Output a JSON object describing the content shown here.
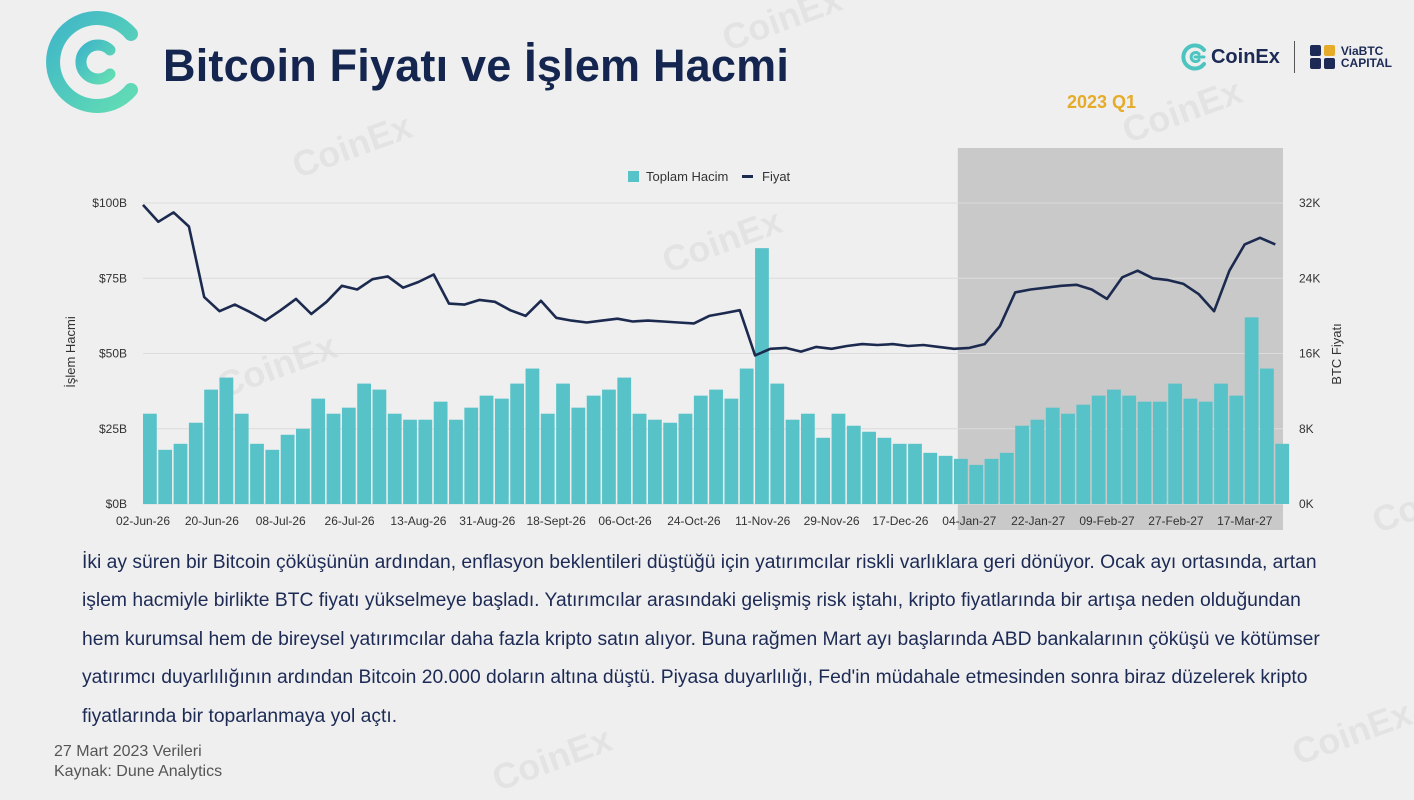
{
  "header": {
    "title": "Bitcoin Fiyatı ve İşlem Hacmi",
    "coinex_brand": "CoinEx",
    "viabtc_brand": "ViaBTC\nCAPITAL",
    "period": "2023 Q1"
  },
  "icons": {
    "main_logo": "coinex-logo-icon",
    "coinex": "coinex-logo-icon",
    "viabtc": "viabtc-logo-icon"
  },
  "colors": {
    "bar": "#58c2c9",
    "line": "#1b2a4e",
    "highlight": "#c9c9c9",
    "period": "#e6ab28",
    "title": "#14254f"
  },
  "chart_data": {
    "type": "bar+line",
    "legend": {
      "volume": "Toplam Hacim",
      "price": "Fiyat"
    },
    "legend_position": "top-center",
    "ylabel_left": "İşlem Hacmi",
    "ylabel_right": "BTC Fiyatı",
    "y_left_ticks": [
      "$0B",
      "$25B",
      "$50B",
      "$75B",
      "$100B"
    ],
    "y_right_ticks": [
      "0K",
      "8K",
      "16K",
      "24K",
      "32K"
    ],
    "y_left_range": [
      0,
      100
    ],
    "y_right_range": [
      0,
      32000
    ],
    "grid": true,
    "x_ticks": [
      "02-Jun-26",
      "20-Jun-26",
      "08-Jul-26",
      "26-Jul-26",
      "13-Aug-26",
      "31-Aug-26",
      "18-Sept-26",
      "06-Oct-26",
      "24-Oct-26",
      "11-Nov-26",
      "29-Nov-26",
      "17-Dec-26",
      "04-Jan-27",
      "22-Jan-27",
      "09-Feb-27",
      "27-Feb-27",
      "17-Mar-27"
    ],
    "x_start": "02-Jun-26",
    "x_end": "27-Mar-27",
    "highlight_from": "01-Jan-27",
    "highlight_to": "27-Mar-27",
    "series": [
      {
        "name": "Toplam Hacim",
        "unit": "B USD",
        "x": [
          "02-Jun-26",
          "06-Jun-26",
          "10-Jun-26",
          "14-Jun-26",
          "18-Jun-26",
          "22-Jun-26",
          "26-Jun-26",
          "30-Jun-26",
          "04-Jul-26",
          "08-Jul-26",
          "12-Jul-26",
          "16-Jul-26",
          "20-Jul-26",
          "24-Jul-26",
          "28-Jul-26",
          "01-Aug-26",
          "05-Aug-26",
          "09-Aug-26",
          "13-Aug-26",
          "17-Aug-26",
          "21-Aug-26",
          "25-Aug-26",
          "29-Aug-26",
          "02-Sep-26",
          "06-Sep-26",
          "10-Sep-26",
          "14-Sep-26",
          "18-Sep-26",
          "22-Sep-26",
          "26-Sep-26",
          "30-Sep-26",
          "04-Oct-26",
          "08-Oct-26",
          "12-Oct-26",
          "16-Oct-26",
          "20-Oct-26",
          "24-Oct-26",
          "28-Oct-26",
          "01-Nov-26",
          "05-Nov-26",
          "09-Nov-26",
          "13-Nov-26",
          "17-Nov-26",
          "21-Nov-26",
          "25-Nov-26",
          "29-Nov-26",
          "03-Dec-26",
          "07-Dec-26",
          "11-Dec-26",
          "15-Dec-26",
          "19-Dec-26",
          "23-Dec-26",
          "27-Dec-26",
          "31-Dec-26",
          "04-Jan-27",
          "08-Jan-27",
          "12-Jan-27",
          "16-Jan-27",
          "20-Jan-27",
          "24-Jan-27",
          "28-Jan-27",
          "01-Feb-27",
          "05-Feb-27",
          "09-Feb-27",
          "13-Feb-27",
          "17-Feb-27",
          "21-Feb-27",
          "25-Feb-27",
          "01-Mar-27",
          "05-Mar-27",
          "09-Mar-27",
          "13-Mar-27",
          "17-Mar-27",
          "21-Mar-27",
          "25-Mar-27"
        ],
        "values": [
          30,
          18,
          20,
          27,
          38,
          42,
          30,
          20,
          18,
          23,
          25,
          35,
          30,
          32,
          40,
          38,
          30,
          28,
          28,
          34,
          28,
          32,
          36,
          35,
          40,
          45,
          30,
          40,
          32,
          36,
          38,
          42,
          30,
          28,
          27,
          30,
          36,
          38,
          35,
          45,
          85,
          40,
          28,
          30,
          22,
          30,
          26,
          24,
          22,
          20,
          20,
          17,
          16,
          15,
          13,
          15,
          17,
          26,
          28,
          32,
          30,
          33,
          36,
          38,
          36,
          34,
          34,
          40,
          35,
          34,
          40,
          36,
          62,
          45,
          20
        ]
      },
      {
        "name": "Fiyat",
        "unit": "USD",
        "x": [
          "02-Jun-26",
          "06-Jun-26",
          "10-Jun-26",
          "14-Jun-26",
          "18-Jun-26",
          "22-Jun-26",
          "26-Jun-26",
          "30-Jun-26",
          "04-Jul-26",
          "08-Jul-26",
          "12-Jul-26",
          "16-Jul-26",
          "20-Jul-26",
          "24-Jul-26",
          "28-Jul-26",
          "01-Aug-26",
          "05-Aug-26",
          "09-Aug-26",
          "13-Aug-26",
          "17-Aug-26",
          "21-Aug-26",
          "25-Aug-26",
          "29-Aug-26",
          "02-Sep-26",
          "06-Sep-26",
          "10-Sep-26",
          "14-Sep-26",
          "18-Sep-26",
          "22-Sep-26",
          "26-Sep-26",
          "30-Sep-26",
          "04-Oct-26",
          "08-Oct-26",
          "12-Oct-26",
          "16-Oct-26",
          "20-Oct-26",
          "24-Oct-26",
          "28-Oct-26",
          "01-Nov-26",
          "05-Nov-26",
          "09-Nov-26",
          "13-Nov-26",
          "17-Nov-26",
          "21-Nov-26",
          "25-Nov-26",
          "29-Nov-26",
          "03-Dec-26",
          "07-Dec-26",
          "11-Dec-26",
          "15-Dec-26",
          "19-Dec-26",
          "23-Dec-26",
          "27-Dec-26",
          "31-Dec-26",
          "04-Jan-27",
          "08-Jan-27",
          "12-Jan-27",
          "16-Jan-27",
          "20-Jan-27",
          "24-Jan-27",
          "28-Jan-27",
          "01-Feb-27",
          "05-Feb-27",
          "09-Feb-27",
          "13-Feb-27",
          "17-Feb-27",
          "21-Feb-27",
          "25-Feb-27",
          "01-Mar-27",
          "05-Mar-27",
          "09-Mar-27",
          "13-Mar-27",
          "17-Mar-27",
          "21-Mar-27",
          "25-Mar-27"
        ],
        "values": [
          31800,
          30000,
          31000,
          29500,
          22000,
          20500,
          21200,
          20400,
          19500,
          20600,
          21800,
          20200,
          21500,
          23200,
          22800,
          23900,
          24200,
          23000,
          23600,
          24400,
          21300,
          21200,
          21700,
          21500,
          20600,
          20000,
          21600,
          19800,
          19500,
          19300,
          19500,
          19700,
          19400,
          19500,
          19400,
          19300,
          19200,
          20000,
          20300,
          20600,
          15800,
          16500,
          16600,
          16200,
          16700,
          16500,
          16800,
          17000,
          16900,
          17000,
          16800,
          16900,
          16700,
          16500,
          16600,
          17000,
          18900,
          22500,
          22800,
          23000,
          23200,
          23300,
          22800,
          21800,
          24100,
          24800,
          24000,
          23800,
          23400,
          22300,
          20500,
          24800,
          27600,
          28300,
          27600
        ]
      }
    ]
  },
  "description": "İki ay süren bir Bitcoin çöküşünün ardından, enflasyon beklentileri düştüğü için yatırımcılar riskli varlıklara geri dönüyor. Ocak ayı ortasında, artan işlem hacmiyle birlikte BTC fiyatı yükselmeye başladı. Yatırımcılar arasındaki gelişmiş risk iştahı, kripto fiyatlarında bir artışa neden olduğundan hem kurumsal hem de bireysel yatırımcılar daha fazla kripto satın alıyor. Buna rağmen Mart ayı başlarında ABD bankalarının çöküşü ve kötümser yatırımcı duyarlılığının ardından Bitcoin 20.000 doların altına düştü. Piyasa duyarlılığı, Fed'in müdahale etmesinden sonra biraz düzelerek kripto fiyatlarında bir toparlanmaya yol açtı.",
  "footer": {
    "date": "27 Mart 2023 Verileri",
    "source": "Kaynak: Dune Analytics"
  },
  "watermark": {
    "text": "CoinEx"
  }
}
